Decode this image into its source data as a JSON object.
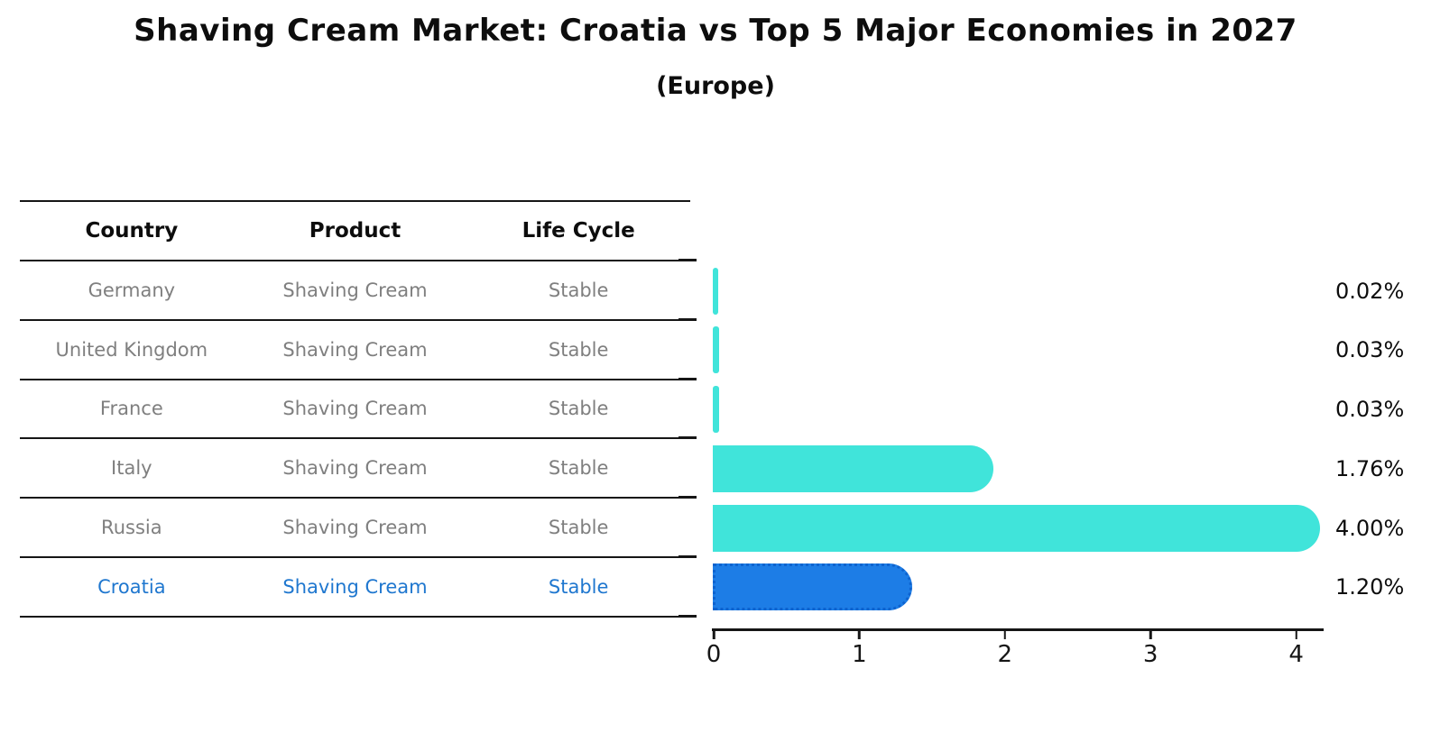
{
  "title": "Shaving Cream Market: Croatia vs Top 5 Major Economies in 2027",
  "subtitle": "(Europe)",
  "table": {
    "headers": [
      "Country",
      "Product",
      "Life Cycle"
    ],
    "rows": [
      {
        "country": "Germany",
        "product": "Shaving Cream",
        "life_cycle": "Stable",
        "highlight": false
      },
      {
        "country": "United Kingdom",
        "product": "Shaving Cream",
        "life_cycle": "Stable",
        "highlight": false
      },
      {
        "country": "France",
        "product": "Shaving Cream",
        "life_cycle": "Stable",
        "highlight": false
      },
      {
        "country": "Italy",
        "product": "Shaving Cream",
        "life_cycle": "Stable",
        "highlight": false
      },
      {
        "country": "Russia",
        "product": "Shaving Cream",
        "life_cycle": "Stable",
        "highlight": false
      },
      {
        "country": "Croatia",
        "product": "Shaving Cream",
        "life_cycle": "Stable",
        "highlight": true
      }
    ]
  },
  "chart_data": {
    "type": "bar",
    "orientation": "horizontal",
    "title": "Shaving Cream Market: Croatia vs Top 5 Major Economies in 2027 (Europe)",
    "categories": [
      "Germany",
      "United Kingdom",
      "France",
      "Italy",
      "Russia",
      "Croatia"
    ],
    "values": [
      0.02,
      0.03,
      0.03,
      1.76,
      4.0,
      1.2
    ],
    "value_labels": [
      "0.02%",
      "0.03%",
      "0.03%",
      "1.76%",
      "4.00%",
      "1.20%"
    ],
    "unit": "%",
    "x_ticks": [
      "0",
      "1",
      "2",
      "3",
      "4"
    ],
    "xlim": [
      0,
      4.2
    ],
    "grid": false,
    "legend": false,
    "highlight_index": 5
  },
  "colors": {
    "bar_teal": "#40e4da",
    "bar_blue": "#1d7de6",
    "highlight_border": "#0e63cf",
    "highlight_text": "#1f77cf",
    "muted_text": "#7f7f7f",
    "ink": "#111111"
  }
}
